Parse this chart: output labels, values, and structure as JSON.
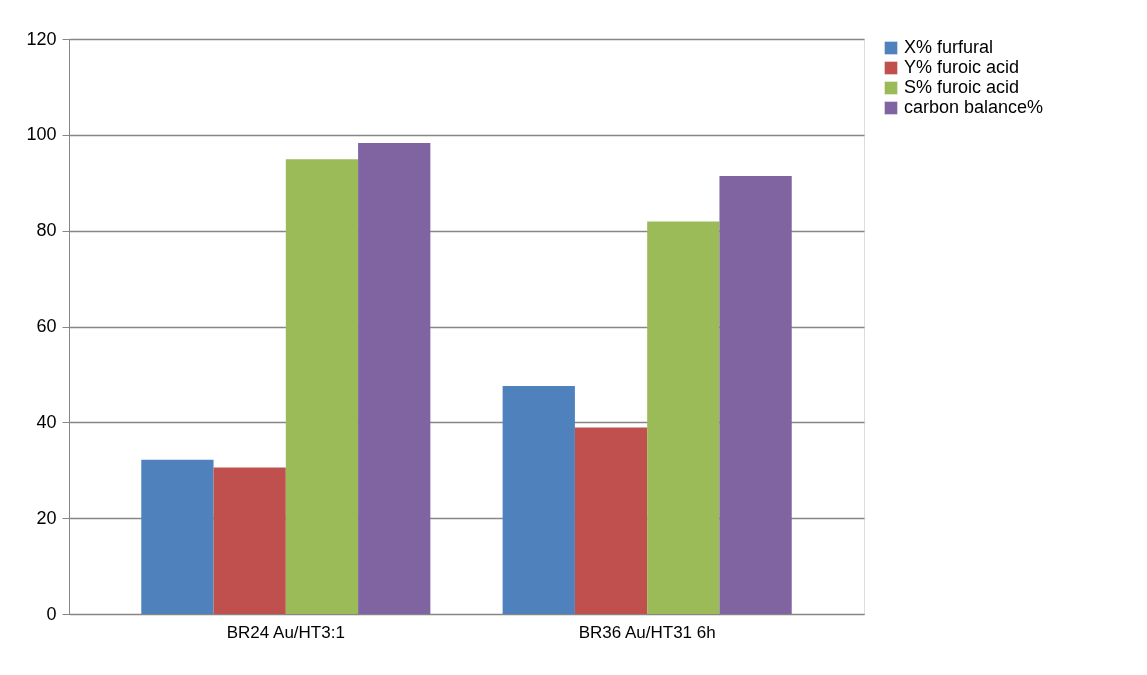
{
  "chart_data": {
    "type": "bar",
    "categories": [
      "BR24 Au/HT3:1",
      "BR36 Au/HT31 6h"
    ],
    "series": [
      {
        "name": "X% furfural",
        "color": "#4f81bd",
        "values": [
          32.2,
          47.6
        ]
      },
      {
        "name": "Y% furoic acid",
        "color": "#c0504d",
        "values": [
          30.6,
          38.9
        ]
      },
      {
        "name": "S% furoic acid",
        "color": "#9bbb59",
        "values": [
          94.9,
          81.9
        ]
      },
      {
        "name": "carbon balance%",
        "color": "#8064a2",
        "values": [
          98.3,
          91.4
        ]
      }
    ],
    "ylim": [
      0,
      120
    ],
    "yticks": [
      0,
      20,
      40,
      60,
      80,
      100,
      120
    ],
    "grid": "y",
    "legend": "right"
  }
}
